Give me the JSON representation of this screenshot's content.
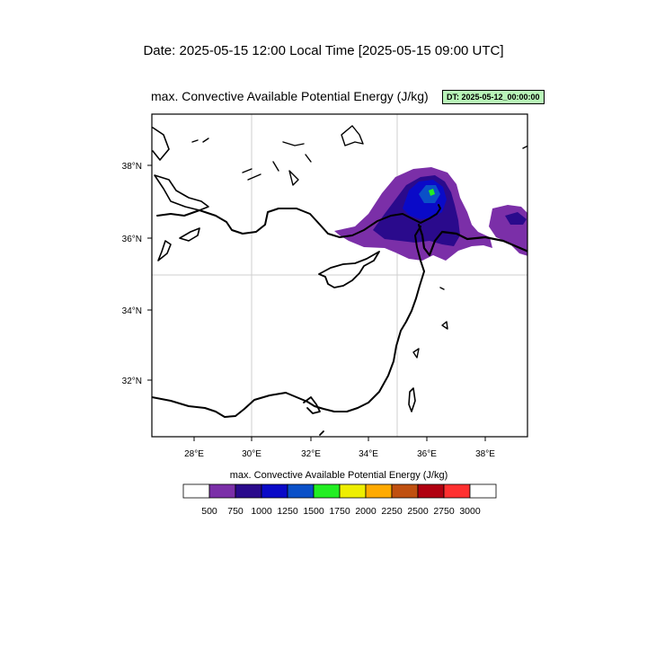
{
  "header": {
    "date_line": "Date: 2025-05-15  12:00 Local Time [2025-05-15  09:00 UTC]"
  },
  "plot": {
    "title": "max. Convective Available Potential Energy   (J/kg)",
    "dt_badge": "DT: 2025-05-12_00:00:00",
    "dt_badge_color": "#b8f5b8"
  },
  "map": {
    "lon_range": [
      26.5,
      39.5
    ],
    "lat_range": [
      30.5,
      39.5
    ],
    "gridlines_lon": [
      30,
      35
    ],
    "gridlines_lat": [
      35
    ],
    "x_ticks": [
      "28°E",
      "30°E",
      "32°E",
      "34°E",
      "36°E",
      "38°E"
    ],
    "y_ticks": [
      "38°N",
      "36°N",
      "34°N",
      "32°N"
    ]
  },
  "colorbar": {
    "title": "max. Convective Available Potential Energy  (J/kg)",
    "labels": [
      "500",
      "750",
      "1000",
      "1250",
      "1500",
      "1750",
      "2000",
      "2250",
      "2500",
      "2750",
      "3000"
    ],
    "colors": [
      "#ffffff",
      "#7b2fa8",
      "#2a0a8c",
      "#0a0ac8",
      "#0a50c8",
      "#22ee22",
      "#eeee00",
      "#ffaa00",
      "#c05010",
      "#b00010",
      "#ff3030",
      "#ffffff"
    ]
  }
}
